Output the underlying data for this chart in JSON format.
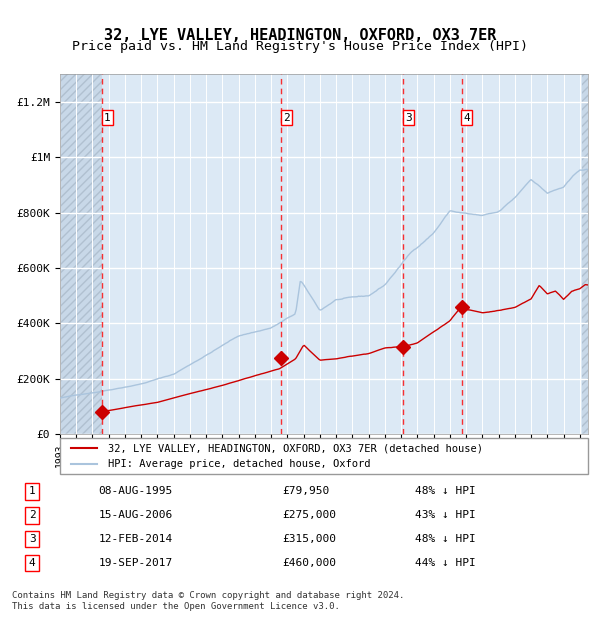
{
  "title": "32, LYE VALLEY, HEADINGTON, OXFORD, OX3 7ER",
  "subtitle": "Price paid vs. HM Land Registry's House Price Index (HPI)",
  "ylabel": "",
  "xlim_start": 1993.0,
  "xlim_end": 2025.5,
  "ylim_min": 0,
  "ylim_max": 1300000,
  "yticks": [
    0,
    200000,
    400000,
    600000,
    800000,
    1000000,
    1200000
  ],
  "ytick_labels": [
    "£0",
    "£200K",
    "£400K",
    "£600K",
    "£800K",
    "£1M",
    "£1.2M"
  ],
  "hpi_color": "#aac4dd",
  "price_color": "#cc0000",
  "background_color": "#dce9f5",
  "plot_bg_color": "#dce9f5",
  "hatch_color": "#c0cfe0",
  "grid_color": "#ffffff",
  "purchase_dates": [
    1995.6,
    2006.62,
    2014.12,
    2017.72
  ],
  "purchase_prices": [
    79950,
    275000,
    315000,
    460000
  ],
  "purchase_labels": [
    "1",
    "2",
    "3",
    "4"
  ],
  "legend_line_label": "32, LYE VALLEY, HEADINGTON, OXFORD, OX3 7ER (detached house)",
  "legend_hpi_label": "HPI: Average price, detached house, Oxford",
  "table_rows": [
    [
      "1",
      "08-AUG-1995",
      "£79,950",
      "48% ↓ HPI"
    ],
    [
      "2",
      "15-AUG-2006",
      "£275,000",
      "43% ↓ HPI"
    ],
    [
      "3",
      "12-FEB-2014",
      "£315,000",
      "48% ↓ HPI"
    ],
    [
      "4",
      "19-SEP-2017",
      "£460,000",
      "44% ↓ HPI"
    ]
  ],
  "footer": "Contains HM Land Registry data © Crown copyright and database right 2024.\nThis data is licensed under the Open Government Licence v3.0.",
  "title_fontsize": 11,
  "subtitle_fontsize": 9.5,
  "tick_fontsize": 8,
  "label_fontsize": 8
}
